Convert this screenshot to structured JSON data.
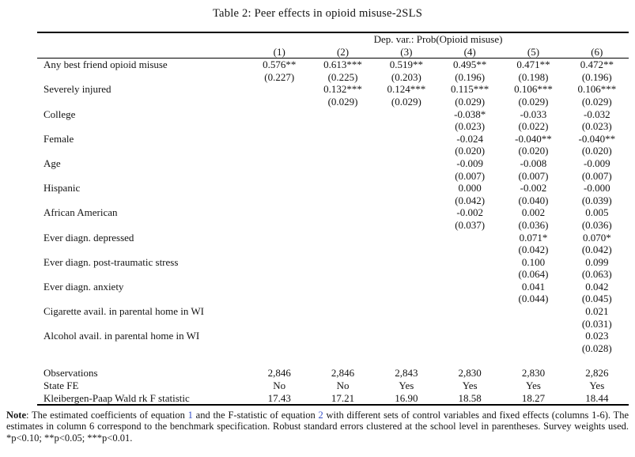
{
  "title": "Table 2: Peer effects in opioid misuse-2SLS",
  "table": {
    "dep_var_header": "Dep. var.: Prob(Opioid misuse)",
    "column_numbers": [
      "(1)",
      "(2)",
      "(3)",
      "(4)",
      "(5)",
      "(6)"
    ],
    "rows": [
      {
        "label": "Any best friend opioid misuse",
        "est": [
          "0.576**",
          "0.613***",
          "0.519**",
          "0.495**",
          "0.471**",
          "0.472**"
        ],
        "se": [
          "(0.227)",
          "(0.225)",
          "(0.203)",
          "(0.196)",
          "(0.198)",
          "(0.196)"
        ]
      },
      {
        "label": "Severely injured",
        "est": [
          "",
          "0.132***",
          "0.124***",
          "0.115***",
          "0.106***",
          "0.106***"
        ],
        "se": [
          "",
          "(0.029)",
          "(0.029)",
          "(0.029)",
          "(0.029)",
          "(0.029)"
        ]
      },
      {
        "label": "College",
        "est": [
          "",
          "",
          "",
          "-0.038*",
          "-0.033",
          "-0.032"
        ],
        "se": [
          "",
          "",
          "",
          "(0.023)",
          "(0.022)",
          "(0.023)"
        ]
      },
      {
        "label": "Female",
        "est": [
          "",
          "",
          "",
          "-0.024",
          "-0.040**",
          "-0.040**"
        ],
        "se": [
          "",
          "",
          "",
          "(0.020)",
          "(0.020)",
          "(0.020)"
        ]
      },
      {
        "label": "Age",
        "est": [
          "",
          "",
          "",
          "-0.009",
          "-0.008",
          "-0.009"
        ],
        "se": [
          "",
          "",
          "",
          "(0.007)",
          "(0.007)",
          "(0.007)"
        ]
      },
      {
        "label": "Hispanic",
        "est": [
          "",
          "",
          "",
          "0.000",
          "-0.002",
          "-0.000"
        ],
        "se": [
          "",
          "",
          "",
          "(0.042)",
          "(0.040)",
          "(0.039)"
        ]
      },
      {
        "label": "African American",
        "est": [
          "",
          "",
          "",
          "-0.002",
          "0.002",
          "0.005"
        ],
        "se": [
          "",
          "",
          "",
          "(0.037)",
          "(0.036)",
          "(0.036)"
        ]
      },
      {
        "label": "Ever diagn. depressed",
        "est": [
          "",
          "",
          "",
          "",
          "0.071*",
          "0.070*"
        ],
        "se": [
          "",
          "",
          "",
          "",
          "(0.042)",
          "(0.042)"
        ]
      },
      {
        "label": "Ever diagn. post-traumatic stress",
        "est": [
          "",
          "",
          "",
          "",
          "0.100",
          "0.099"
        ],
        "se": [
          "",
          "",
          "",
          "",
          "(0.064)",
          "(0.063)"
        ]
      },
      {
        "label": "Ever diagn. anxiety",
        "est": [
          "",
          "",
          "",
          "",
          "0.041",
          "0.042"
        ],
        "se": [
          "",
          "",
          "",
          "",
          "(0.044)",
          "(0.045)"
        ]
      },
      {
        "label": "Cigarette avail. in parental home in WI",
        "est": [
          "",
          "",
          "",
          "",
          "",
          "0.021"
        ],
        "se": [
          "",
          "",
          "",
          "",
          "",
          "(0.031)"
        ]
      },
      {
        "label": "Alcohol avail. in parental home in WI",
        "est": [
          "",
          "",
          "",
          "",
          "",
          "0.023"
        ],
        "se": [
          "",
          "",
          "",
          "",
          "",
          "(0.028)"
        ]
      }
    ],
    "summary_rows": [
      {
        "label": "Observations",
        "values": [
          "2,846",
          "2,846",
          "2,843",
          "2,830",
          "2,830",
          "2,826"
        ]
      },
      {
        "label": "State FE",
        "values": [
          "No",
          "No",
          "Yes",
          "Yes",
          "Yes",
          "Yes"
        ]
      },
      {
        "label": "Kleibergen-Paap Wald rk F statistic",
        "values": [
          "17.43",
          "17.21",
          "16.90",
          "18.58",
          "18.27",
          "18.44"
        ]
      }
    ]
  },
  "note": {
    "segments": [
      {
        "text": "Note",
        "bold": true,
        "link": false
      },
      {
        "text": ": The estimated coefficients of equation ",
        "bold": false,
        "link": false
      },
      {
        "text": "1",
        "bold": false,
        "link": true
      },
      {
        "text": " and the F-statistic of equation ",
        "bold": false,
        "link": false
      },
      {
        "text": "2",
        "bold": false,
        "link": true
      },
      {
        "text": " with different sets of control variables and fixed effects (columns 1-6). The estimates in column 6 correspond to the benchmark specification. Robust standard errors clustered at the school level in parentheses. Survey weights used. *p<0.10; **p<0.05; ***p<0.01.",
        "bold": false,
        "link": false
      }
    ]
  },
  "colors": {
    "text": "#141414",
    "link": "#3650c8",
    "rule": "#000000",
    "background": "#ffffff"
  }
}
